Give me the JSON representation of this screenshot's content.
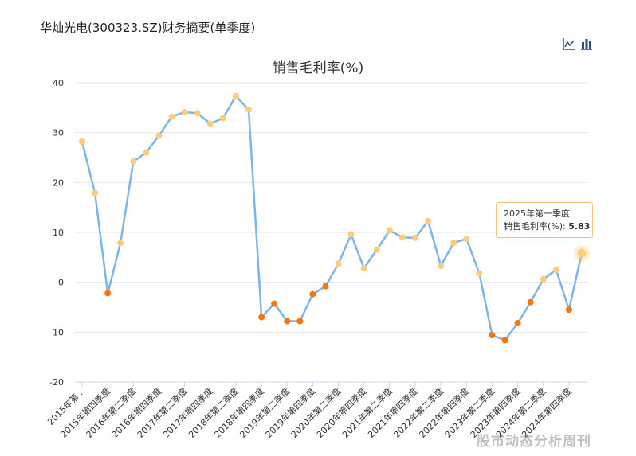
{
  "header": {
    "title": "华灿光电(300323.SZ)财务摘要(单季度)"
  },
  "toolbar": {
    "line_icon": "line-chart-icon",
    "bar_icon": "bar-chart-icon"
  },
  "chart_data": {
    "type": "line",
    "title": "销售毛利率(%)",
    "xlabel": "",
    "ylabel": "",
    "ylim": [
      -20,
      40
    ],
    "yticks": [
      40,
      30,
      20,
      10,
      0,
      -10,
      -20
    ],
    "grid": true,
    "line_color": "#7cb5ec",
    "positive_marker_color": "#fbcd7b",
    "negative_marker_color": "#f7760b",
    "x_tick_labels": [
      "2015年第...",
      "2015年第四季度",
      "2016年第二季度",
      "2016年第四季度",
      "2017年第二季度",
      "2017年第四季度",
      "2018年第二季度",
      "2018年第四季度",
      "2019年第二季度",
      "2019年第四季度",
      "2020年第二季度",
      "2020年第四季度",
      "2021年第二季度",
      "2021年第四季度",
      "2022年第二季度",
      "2022年第四季度",
      "2023年第二季度",
      "2023年第四季度",
      "2024年第二季度",
      "2024年第四季度"
    ],
    "values": [
      28.2,
      17.9,
      -2.2,
      7.9,
      24.2,
      26.0,
      29.4,
      33.2,
      34.1,
      33.9,
      31.8,
      32.9,
      37.3,
      34.6,
      -7.0,
      -4.3,
      -7.8,
      -7.8,
      -2.4,
      -0.8,
      3.7,
      9.6,
      2.8,
      6.5,
      10.4,
      9.0,
      8.9,
      12.3,
      3.3,
      7.9,
      8.7,
      1.8,
      -10.6,
      -11.6,
      -8.2,
      -4.0,
      0.6,
      2.5,
      -5.5,
      5.83
    ],
    "highlight": {
      "label": "2025年第一季度",
      "series": "销售毛利率(%):",
      "value": "5.83"
    }
  },
  "watermark": "股市动态分析周刊"
}
